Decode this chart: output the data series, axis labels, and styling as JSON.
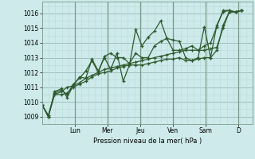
{
  "background_color": "#ceeaea",
  "grid_color_minor": "#b8dada",
  "grid_color_major": "#9ababa",
  "line_color": "#2d5a2d",
  "ylabel": "Pression niveau de la mer( hPa )",
  "ylim": [
    1008.5,
    1016.8
  ],
  "yticks": [
    1009,
    1010,
    1011,
    1012,
    1013,
    1014,
    1015,
    1016
  ],
  "day_labels": [
    "Lun",
    "Mer",
    "Jeu",
    "Ven",
    "Sam",
    "D"
  ],
  "day_positions": [
    1.833,
    3.667,
    5.5,
    7.333,
    9.167,
    11.0
  ],
  "xlim": [
    0,
    11.8
  ],
  "series1_x": [
    0.0,
    0.35,
    0.7,
    1.1,
    1.4,
    1.75,
    2.1,
    2.45,
    2.8,
    3.15,
    3.5,
    3.85,
    4.2,
    4.55,
    4.9,
    5.25,
    5.6,
    5.95,
    6.3,
    6.65,
    7.0,
    7.35,
    7.7,
    8.05,
    8.4,
    8.75,
    9.1,
    9.45,
    9.8,
    10.15,
    10.5,
    10.85,
    11.2
  ],
  "series1_y": [
    1009.8,
    1009.0,
    1010.7,
    1010.9,
    1010.3,
    1011.1,
    1011.7,
    1011.6,
    1012.9,
    1012.1,
    1013.0,
    1012.2,
    1013.3,
    1011.4,
    1012.5,
    1014.9,
    1013.8,
    1014.4,
    1014.8,
    1015.5,
    1014.3,
    1014.2,
    1014.1,
    1013.0,
    1012.8,
    1013.0,
    1015.1,
    1013.0,
    1015.2,
    1016.1,
    1016.2,
    1016.1,
    1016.2
  ],
  "series2_x": [
    0.0,
    0.35,
    0.7,
    1.1,
    1.4,
    1.75,
    2.1,
    2.45,
    2.8,
    3.15,
    3.5,
    3.85,
    4.2,
    4.55,
    4.9,
    5.25,
    5.6,
    5.95,
    6.3,
    6.65,
    7.0,
    7.35,
    7.7,
    8.05,
    8.4,
    8.75,
    9.1,
    9.45,
    9.8,
    10.15,
    10.5,
    10.85,
    11.2
  ],
  "series2_y": [
    1009.8,
    1009.0,
    1010.6,
    1010.8,
    1010.5,
    1011.2,
    1011.6,
    1012.1,
    1012.8,
    1012.0,
    1013.1,
    1013.3,
    1013.0,
    1013.0,
    1012.6,
    1013.3,
    1013.0,
    1013.0,
    1013.8,
    1014.1,
    1014.3,
    1013.5,
    1013.5,
    1013.6,
    1013.8,
    1013.5,
    1013.8,
    1014.0,
    1015.1,
    1016.2,
    1016.2,
    1016.1,
    1016.2
  ],
  "series3_x": [
    0.0,
    0.35,
    0.7,
    1.1,
    1.4,
    1.75,
    2.1,
    2.45,
    2.8,
    3.15,
    3.5,
    3.85,
    4.2,
    4.55,
    4.9,
    5.25,
    5.6,
    5.95,
    6.3,
    6.65,
    7.0,
    7.35,
    7.7,
    8.05,
    8.4,
    8.75,
    9.1,
    9.45,
    9.8,
    10.15,
    10.5,
    10.85,
    11.2
  ],
  "series3_y": [
    1009.8,
    1009.1,
    1010.5,
    1010.7,
    1011.0,
    1011.1,
    1011.3,
    1011.6,
    1011.8,
    1012.0,
    1012.2,
    1012.3,
    1012.4,
    1012.5,
    1012.6,
    1012.7,
    1012.8,
    1012.9,
    1013.0,
    1013.1,
    1013.2,
    1013.3,
    1013.4,
    1013.5,
    1013.5,
    1013.5,
    1013.5,
    1013.6,
    1013.7,
    1015.0,
    1016.1,
    1016.1,
    1016.2
  ],
  "series4_x": [
    0.0,
    0.35,
    0.7,
    1.1,
    1.4,
    1.75,
    2.1,
    2.45,
    2.8,
    3.15,
    3.5,
    3.85,
    4.2,
    4.55,
    4.9,
    5.25,
    5.6,
    5.95,
    6.3,
    6.65,
    7.0,
    7.35,
    7.7,
    8.05,
    8.4,
    8.75,
    9.1,
    9.45,
    9.8,
    10.15,
    10.5,
    10.85,
    11.2
  ],
  "series4_y": [
    1009.8,
    1009.0,
    1010.5,
    1010.5,
    1010.6,
    1011.0,
    1011.2,
    1011.4,
    1011.7,
    1011.9,
    1012.0,
    1012.1,
    1012.3,
    1012.4,
    1012.5,
    1012.5,
    1012.5,
    1012.6,
    1012.7,
    1012.8,
    1012.9,
    1012.9,
    1013.0,
    1012.8,
    1012.8,
    1012.9,
    1013.0,
    1013.0,
    1013.5,
    1015.2,
    1016.1,
    1016.1,
    1016.2
  ]
}
